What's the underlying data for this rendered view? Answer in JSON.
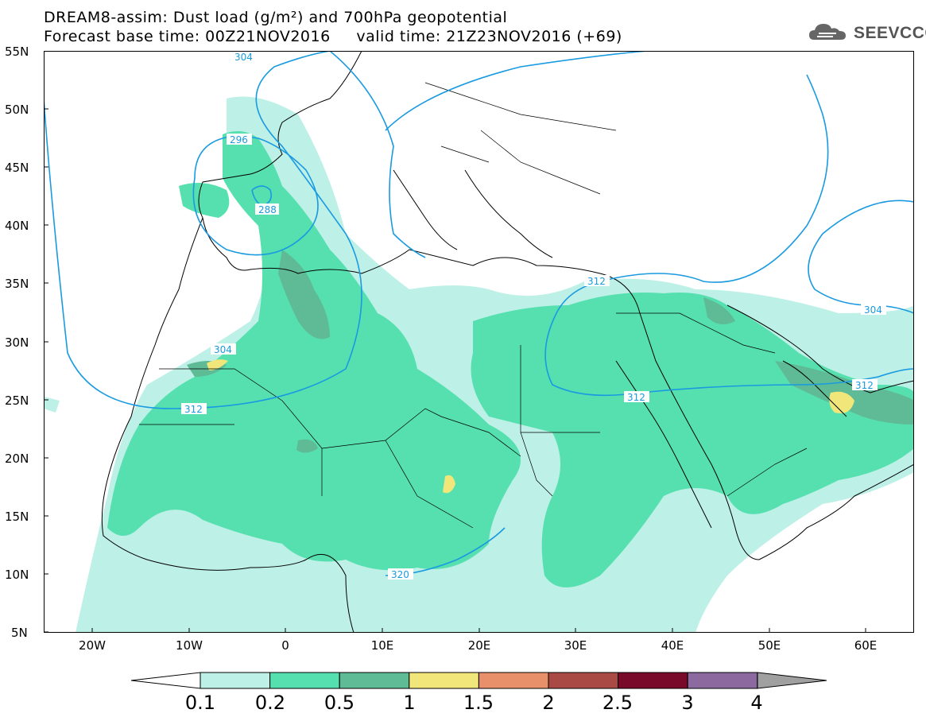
{
  "header": {
    "line1": "DREAM8-assim: Dust load (g/m²) and 700hPa geopotential",
    "line2": "Forecast base time: 00Z21NOV2016     valid time: 21Z23NOV2016 (+69)"
  },
  "logo": {
    "text": "SEEVCCC",
    "icon": "cloud-logo-icon"
  },
  "map": {
    "lat_labels": [
      "55N",
      "50N",
      "45N",
      "40N",
      "35N",
      "30N",
      "25N",
      "20N",
      "15N",
      "10N",
      "5N"
    ],
    "lon_labels": [
      "20W",
      "10W",
      "0",
      "10E",
      "20E",
      "30E",
      "40E",
      "50E",
      "60E"
    ],
    "lat_range": [
      5,
      55
    ],
    "lon_range": [
      -25,
      65
    ],
    "contour_color": "#1a9ae0",
    "contour_labels": [
      "304",
      "296",
      "288",
      "304",
      "312",
      "312",
      "312",
      "312",
      "304",
      "320"
    ]
  },
  "legend": {
    "labels": [
      "0.1",
      "0.2",
      "0.5",
      "1",
      "1.5",
      "2",
      "2.5",
      "3",
      "4"
    ],
    "colors": [
      "#bdf0e6",
      "#56e0b0",
      "#5fba96",
      "#f0e67a",
      "#e8906a",
      "#aa4a44",
      "#7a0a2a",
      "#8c6aa0",
      "#a0a0a0"
    ]
  }
}
